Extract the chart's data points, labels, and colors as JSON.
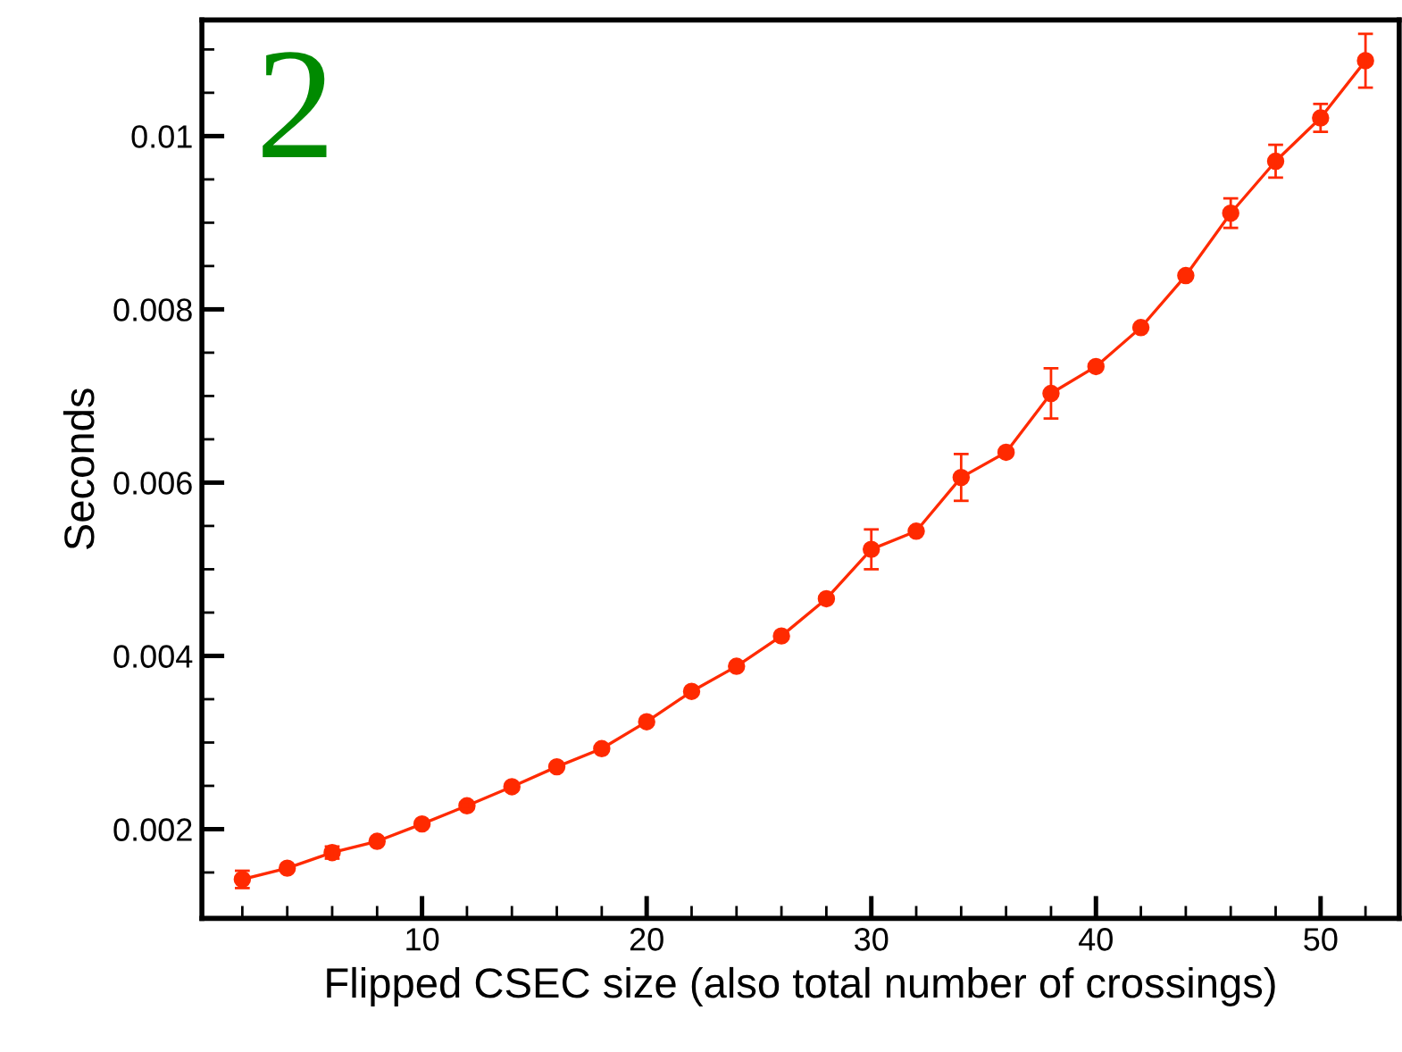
{
  "chart_data": {
    "type": "line",
    "xlabel": "Flipped CSEC size (also total number of crossings)",
    "ylabel": "Seconds",
    "annotations": [
      "2"
    ],
    "x": [
      2,
      4,
      6,
      8,
      10,
      12,
      14,
      16,
      18,
      20,
      22,
      24,
      26,
      28,
      30,
      32,
      34,
      36,
      38,
      40,
      42,
      44,
      46,
      48,
      50,
      52
    ],
    "series": [
      {
        "color": "#ff2a00",
        "values": [
          0.00142,
          0.00155,
          0.00173,
          0.00186,
          0.00206,
          0.00227,
          0.00249,
          0.00272,
          0.00293,
          0.00324,
          0.00359,
          0.00388,
          0.00423,
          0.00466,
          0.00523,
          0.00544,
          0.00606,
          0.00635,
          0.00703,
          0.00734,
          0.00779,
          0.00839,
          0.00911,
          0.00971,
          0.01021,
          0.01087
        ],
        "errors": [
          0.0001,
          null,
          7e-05,
          null,
          null,
          4e-05,
          null,
          null,
          null,
          null,
          null,
          null,
          null,
          null,
          0.00023,
          null,
          0.00027,
          null,
          0.00029,
          null,
          null,
          null,
          0.00017,
          0.00019,
          0.00016,
          0.00031
        ]
      }
    ],
    "marker": "circle",
    "line_style": "solid",
    "grid": false,
    "xlim": [
      0.2,
      53.5
    ],
    "ylim": [
      0.00097,
      0.01134
    ],
    "xticks": [
      {
        "value": 2,
        "label": null
      },
      {
        "value": 4,
        "label": null
      },
      {
        "value": 6,
        "label": null
      },
      {
        "value": 8,
        "label": null
      },
      10,
      {
        "value": 12,
        "label": null
      },
      {
        "value": 14,
        "label": null
      },
      {
        "value": 16,
        "label": null
      },
      {
        "value": 18,
        "label": null
      },
      20,
      {
        "value": 22,
        "label": null
      },
      {
        "value": 24,
        "label": null
      },
      {
        "value": 26,
        "label": null
      },
      {
        "value": 28,
        "label": null
      },
      30,
      {
        "value": 32,
        "label": null
      },
      {
        "value": 34,
        "label": null
      },
      {
        "value": 36,
        "label": null
      },
      {
        "value": 38,
        "label": null
      },
      40,
      {
        "value": 42,
        "label": null
      },
      {
        "value": 44,
        "label": null
      },
      {
        "value": 46,
        "label": null
      },
      {
        "value": 48,
        "label": null
      },
      50,
      {
        "value": 52,
        "label": null
      }
    ],
    "yticks": [
      {
        "value": 0.0015,
        "label": null
      },
      0.002,
      {
        "value": 0.0025,
        "label": null
      },
      {
        "value": 0.003,
        "label": null
      },
      {
        "value": 0.0035,
        "label": null
      },
      0.004,
      {
        "value": 0.0045,
        "label": null
      },
      {
        "value": 0.005,
        "label": null
      },
      {
        "value": 0.0055,
        "label": null
      },
      0.006,
      {
        "value": 0.0065,
        "label": null
      },
      {
        "value": 0.007,
        "label": null
      },
      {
        "value": 0.0075,
        "label": null
      },
      0.008,
      {
        "value": 0.0085,
        "label": null
      },
      {
        "value": 0.009,
        "label": null
      },
      {
        "value": 0.0095,
        "label": null
      },
      0.01,
      {
        "value": 0.0105,
        "label": null
      },
      {
        "value": 0.011,
        "label": null
      }
    ]
  }
}
